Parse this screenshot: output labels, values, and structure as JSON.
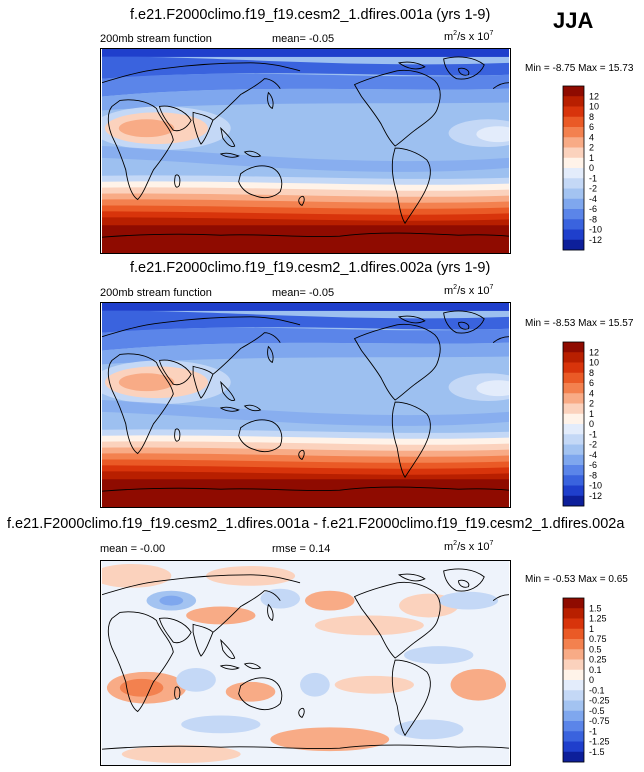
{
  "season": "JJA",
  "panels": [
    {
      "id": "p1",
      "title": "f.e21.F2000climo.f19_f19.cesm2_1.dfires.001a (yrs 1-9)",
      "left_label": "200mb stream function",
      "mid_label": "mean=  -0.05",
      "unit_base": "m",
      "unit_exp": "2",
      "unit_rest": "/s x 10",
      "unit_exp2": "7",
      "minmax": "Min =  -8.75 Max =  15.73",
      "levels": [
        "12",
        "10",
        "8",
        "6",
        "4",
        "2",
        "1",
        "0",
        "-1",
        "-2",
        "-4",
        "-6",
        "-8",
        "-10",
        "-12"
      ],
      "colors": [
        "#8f0b00",
        "#b81f00",
        "#d8340b",
        "#ea5a26",
        "#f3814f",
        "#f8ab86",
        "#fbd2bd",
        "#fff3e9",
        "#e3ecfb",
        "#c4d8f6",
        "#a3c3f1",
        "#7fa7ee",
        "#5b85e9",
        "#3a63de",
        "#1f3fcc",
        "#0d1f9a"
      ],
      "base_fill": "#9dc0f0",
      "mean": -0.05,
      "min": -8.75,
      "max": 15.73
    },
    {
      "id": "p2",
      "title": "f.e21.F2000climo.f19_f19.cesm2_1.dfires.002a (yrs 1-9)",
      "left_label": "200mb stream function",
      "mid_label": "mean=  -0.05",
      "unit_base": "m",
      "unit_exp": "2",
      "unit_rest": "/s x 10",
      "unit_exp2": "7",
      "minmax": "Min =  -8.53 Max =  15.57",
      "levels": [
        "12",
        "10",
        "8",
        "6",
        "4",
        "2",
        "1",
        "0",
        "-1",
        "-2",
        "-4",
        "-6",
        "-8",
        "-10",
        "-12"
      ],
      "colors": [
        "#8f0b00",
        "#b81f00",
        "#d8340b",
        "#ea5a26",
        "#f3814f",
        "#f8ab86",
        "#fbd2bd",
        "#fff3e9",
        "#e3ecfb",
        "#c4d8f6",
        "#a3c3f1",
        "#7fa7ee",
        "#5b85e9",
        "#3a63de",
        "#1f3fcc",
        "#0d1f9a"
      ],
      "base_fill": "#9dc0f0",
      "mean": -0.05,
      "min": -8.53,
      "max": 15.57
    },
    {
      "id": "p3",
      "title": "f.e21.F2000climo.f19_f19.cesm2_1.dfires.001a - f.e21.F2000climo.f19_f19.cesm2_1.dfires.002a",
      "left_label": "mean =  -0.00",
      "mid_label": "rmse =  0.14",
      "unit_base": "m",
      "unit_exp": "2",
      "unit_rest": "/s x 10",
      "unit_exp2": "7",
      "minmax": "Min =  -0.53 Max =  0.65",
      "levels": [
        "1.5",
        "1.25",
        "1",
        "0.75",
        "0.5",
        "0.25",
        "0.1",
        "0",
        "-0.1",
        "-0.25",
        "-0.5",
        "-0.75",
        "-1",
        "-1.25",
        "-1.5"
      ],
      "colors": [
        "#8f0b00",
        "#b81f00",
        "#d8340b",
        "#ea5a26",
        "#f3814f",
        "#f8ab86",
        "#fbd2bd",
        "#fff3e9",
        "#e3ecfb",
        "#c4d8f6",
        "#a3c3f1",
        "#7fa7ee",
        "#5b85e9",
        "#3a63de",
        "#1f3fcc",
        "#0d1f9a"
      ],
      "base_fill": "#eef3fb",
      "mean": -0.0,
      "rmse": 0.14,
      "min": -0.53,
      "max": 0.65
    }
  ],
  "chart_data": [
    {
      "type": "heatmap",
      "title": "f.e21.F2000climo.f19_f19.cesm2_1.dfires.001a (yrs 1-9)",
      "variable": "200mb stream function",
      "units": "m2/s x 10^7",
      "mean": -0.05,
      "min": -8.75,
      "max": 15.73,
      "contour_levels": [
        -12,
        -10,
        -8,
        -6,
        -4,
        -2,
        -1,
        0,
        1,
        2,
        4,
        6,
        8,
        10,
        12
      ],
      "projection": "cylindrical equidistant, Pacific-centered"
    },
    {
      "type": "heatmap",
      "title": "f.e21.F2000climo.f19_f19.cesm2_1.dfires.002a (yrs 1-9)",
      "variable": "200mb stream function",
      "units": "m2/s x 10^7",
      "mean": -0.05,
      "min": -8.53,
      "max": 15.57,
      "contour_levels": [
        -12,
        -10,
        -8,
        -6,
        -4,
        -2,
        -1,
        0,
        1,
        2,
        4,
        6,
        8,
        10,
        12
      ],
      "projection": "cylindrical equidistant, Pacific-centered"
    },
    {
      "type": "heatmap",
      "title": "001a - 002a difference",
      "units": "m2/s x 10^7",
      "mean": -0.0,
      "rmse": 0.14,
      "min": -0.53,
      "max": 0.65,
      "contour_levels": [
        -1.5,
        -1.25,
        -1,
        -0.75,
        -0.5,
        -0.25,
        -0.1,
        0,
        0.1,
        0.25,
        0.5,
        0.75,
        1,
        1.25,
        1.5
      ]
    }
  ]
}
